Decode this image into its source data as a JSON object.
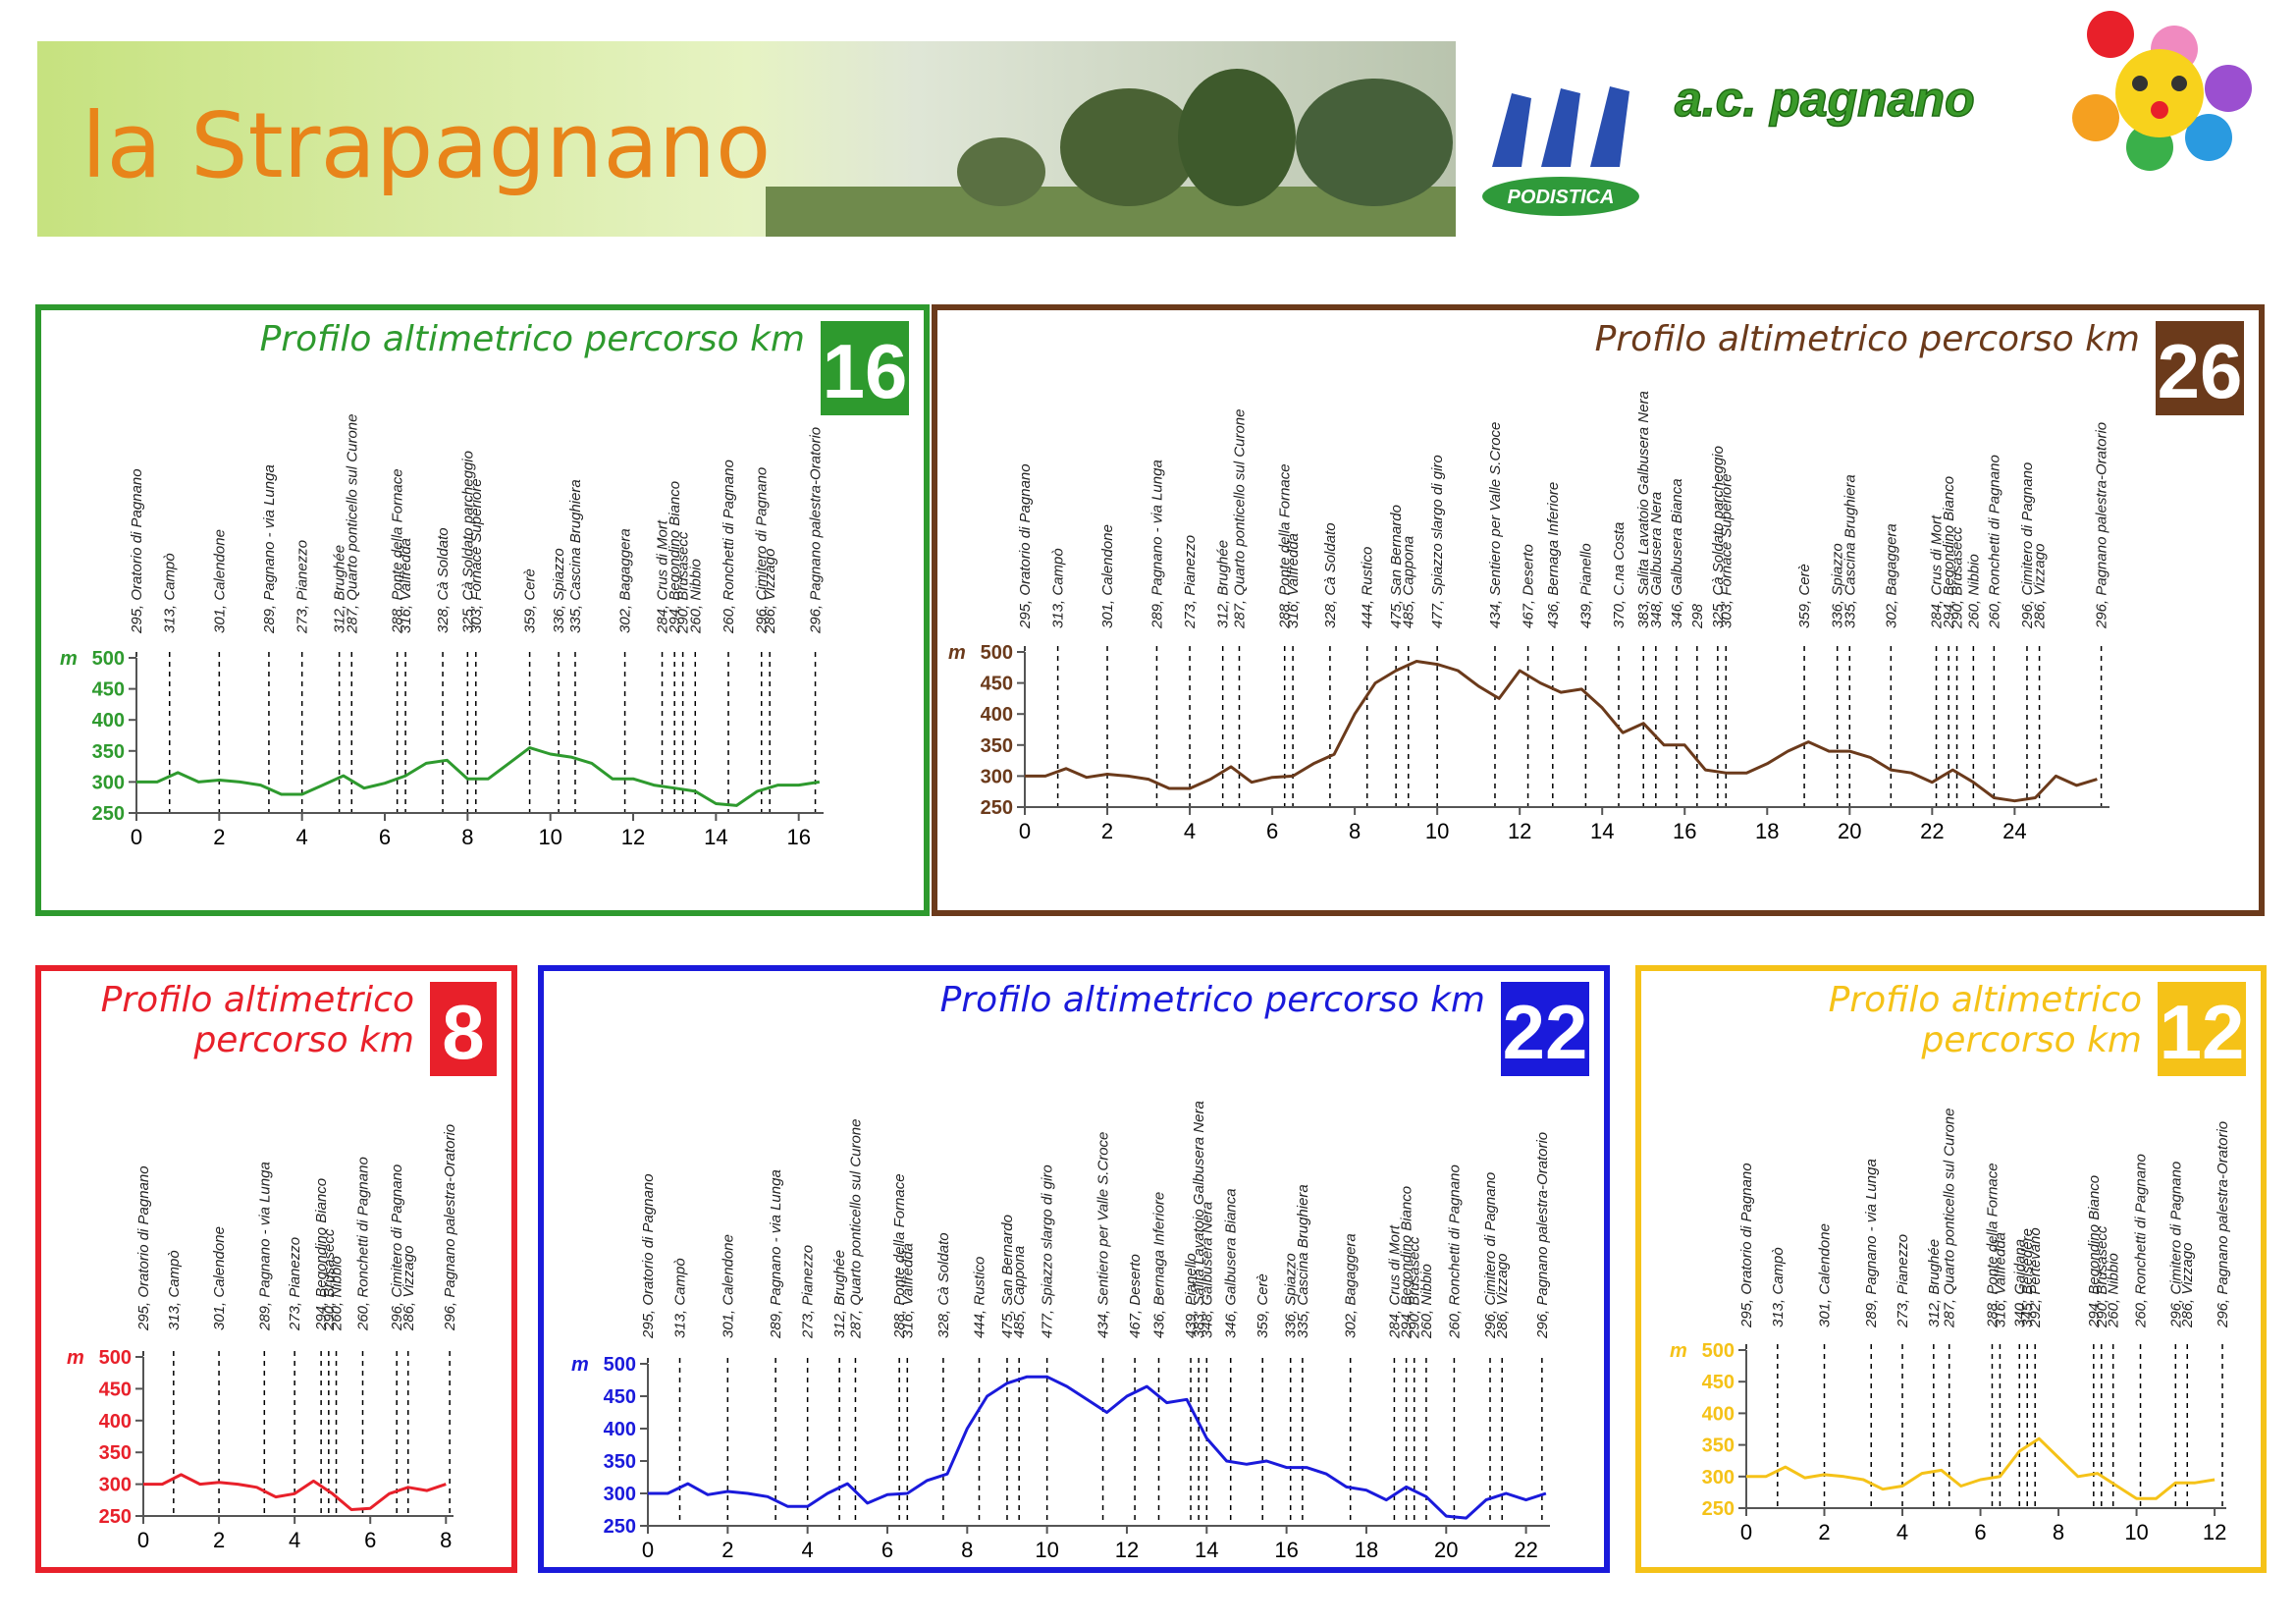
{
  "header": {
    "title": "la Strapagnano",
    "club": "a.c. pagnano",
    "logo_text": "PODISTICA"
  },
  "chart_data": [
    {
      "type": "line",
      "title": "Profilo altimetrico percorso km",
      "badge": "16",
      "y_label": "m",
      "color": "#2e9a2e",
      "xlim": [
        0,
        16.6
      ],
      "xticks": [
        0,
        2,
        4,
        6,
        8,
        10,
        12,
        14,
        16
      ],
      "ylim": [
        250,
        500
      ],
      "yticks": [
        250,
        300,
        350,
        400,
        450,
        500
      ],
      "x": [
        0,
        0.5,
        1,
        1.5,
        2,
        2.5,
        3,
        3.5,
        4,
        4.5,
        5,
        5.5,
        6,
        6.5,
        7,
        7.5,
        8,
        8.5,
        9,
        9.5,
        10,
        10.5,
        11,
        11.5,
        12,
        12.5,
        13,
        13.5,
        14,
        14.5,
        15,
        15.5,
        16,
        16.5
      ],
      "values": [
        300,
        300,
        315,
        300,
        303,
        300,
        295,
        280,
        280,
        295,
        310,
        290,
        298,
        310,
        330,
        335,
        305,
        305,
        330,
        355,
        345,
        340,
        330,
        305,
        305,
        295,
        290,
        285,
        265,
        262,
        285,
        295,
        295,
        300
      ],
      "waypoints": [
        {
          "label": "295, Oratorio di Pagnano",
          "km": 0
        },
        {
          "label": "313, Campò",
          "km": 0.8
        },
        {
          "label": "301, Calendone",
          "km": 2
        },
        {
          "label": "289, Pagnano - via Lunga",
          "km": 3.2
        },
        {
          "label": "273, Pianezzo",
          "km": 4
        },
        {
          "label": "312, Brughée",
          "km": 4.9
        },
        {
          "label": "287, Quarto ponticello sul Curone",
          "km": 5.2
        },
        {
          "label": "288, Ponte della Fornace",
          "km": 6.3
        },
        {
          "label": "316, Valfredda",
          "km": 6.5
        },
        {
          "label": "328, Cà Soldato",
          "km": 7.4
        },
        {
          "label": "325, Cà Soldato parcheggio",
          "km": 8.0
        },
        {
          "label": "303, Fornace Superiore",
          "km": 8.2
        },
        {
          "label": "359, Cerè",
          "km": 9.5
        },
        {
          "label": "336, Spiazzo",
          "km": 10.2
        },
        {
          "label": "335, Cascina Brughiera",
          "km": 10.6
        },
        {
          "label": "302, Bagaggera",
          "km": 11.8
        },
        {
          "label": "284, Crus di Mort",
          "km": 12.7
        },
        {
          "label": "294, Begondino Bianco",
          "km": 13.0
        },
        {
          "label": "290, Brusasecc",
          "km": 13.2
        },
        {
          "label": "260, Nibbio",
          "km": 13.5
        },
        {
          "label": "260, Ronchetti di Pagnano",
          "km": 14.3
        },
        {
          "label": "296, Cimitero di Pagnano",
          "km": 15.1
        },
        {
          "label": "286, Vizzago",
          "km": 15.3
        },
        {
          "label": "296, Pagnano palestra-Oratorio",
          "km": 16.4
        }
      ]
    },
    {
      "type": "line",
      "title": "Profilo altimetrico percorso km",
      "badge": "26",
      "y_label": "m",
      "color": "#6b3a1b",
      "xlim": [
        0,
        26.3
      ],
      "xticks": [
        0,
        2,
        4,
        6,
        8,
        10,
        12,
        14,
        16,
        18,
        20,
        22,
        24
      ],
      "ylim": [
        250,
        500
      ],
      "yticks": [
        250,
        300,
        350,
        400,
        450,
        500
      ],
      "x": [
        0,
        0.5,
        1,
        1.5,
        2,
        2.5,
        3,
        3.5,
        4,
        4.5,
        5,
        5.5,
        6,
        6.5,
        7,
        7.5,
        8,
        8.5,
        9,
        9.5,
        10,
        10.5,
        11,
        11.5,
        12,
        12.5,
        13,
        13.5,
        14,
        14.5,
        15,
        15.5,
        16,
        16.5,
        17,
        17.5,
        18,
        18.5,
        19,
        19.5,
        20,
        20.5,
        21,
        21.5,
        22,
        22.5,
        23,
        23.5,
        24,
        24.5,
        25,
        25.5,
        26
      ],
      "values": [
        300,
        300,
        312,
        298,
        303,
        300,
        295,
        280,
        280,
        295,
        315,
        290,
        298,
        300,
        320,
        335,
        400,
        450,
        470,
        485,
        480,
        470,
        445,
        425,
        470,
        450,
        435,
        440,
        410,
        370,
        385,
        350,
        350,
        310,
        305,
        305,
        320,
        340,
        355,
        340,
        340,
        330,
        310,
        305,
        290,
        310,
        290,
        265,
        260,
        265,
        300,
        285,
        295
      ],
      "waypoints": [
        {
          "label": "295, Oratorio di Pagnano",
          "km": 0
        },
        {
          "label": "313, Campò",
          "km": 0.8
        },
        {
          "label": "301, Calendone",
          "km": 2
        },
        {
          "label": "289, Pagnano - via Lunga",
          "km": 3.2
        },
        {
          "label": "273, Pianezzo",
          "km": 4
        },
        {
          "label": "312, Brughée",
          "km": 4.8
        },
        {
          "label": "287, Quarto ponticello sul Curone",
          "km": 5.2
        },
        {
          "label": "288, Ponte della Fornace",
          "km": 6.3
        },
        {
          "label": "316, Valfredda",
          "km": 6.5
        },
        {
          "label": "328, Cà Soldato",
          "km": 7.4
        },
        {
          "label": "444, Rustico",
          "km": 8.3
        },
        {
          "label": "475, San Bernardo",
          "km": 9.0
        },
        {
          "label": "485, Cappona",
          "km": 9.3
        },
        {
          "label": "477, Spiazzo slargo di giro",
          "km": 10.0
        },
        {
          "label": "434, Sentiero per Valle S.Croce",
          "km": 11.4
        },
        {
          "label": "467, Deserto",
          "km": 12.2
        },
        {
          "label": "436, Bernaga Inferiore",
          "km": 12.8
        },
        {
          "label": "439, Pianello",
          "km": 13.6
        },
        {
          "label": "370, C.na Costa",
          "km": 14.4
        },
        {
          "label": "383, Salita Lavatoio Galbusera Nera",
          "km": 15.0
        },
        {
          "label": "348, Galbusera Nera",
          "km": 15.3
        },
        {
          "label": "346, Galbusera Bianca",
          "km": 15.8
        },
        {
          "label": "298",
          "km": 16.3
        },
        {
          "label": "325, Cà Soldato parcheggio",
          "km": 16.8
        },
        {
          "label": "303, Fornace Superiore",
          "km": 17.0
        },
        {
          "label": "359, Cerè",
          "km": 18.9
        },
        {
          "label": "336, Spiazzo",
          "km": 19.7
        },
        {
          "label": "335, Cascina Brughiera",
          "km": 20.0
        },
        {
          "label": "302, Bagaggera",
          "km": 21.0
        },
        {
          "label": "284, Crus di Mort",
          "km": 22.1
        },
        {
          "label": "294, Begondino Bianco",
          "km": 22.4
        },
        {
          "label": "290, Brusasecc",
          "km": 22.6
        },
        {
          "label": "260, Nibbio",
          "km": 23.0
        },
        {
          "label": "260, Ronchetti di Pagnano",
          "km": 23.5
        },
        {
          "label": "296, Cimitero di Pagnano",
          "km": 24.3
        },
        {
          "label": "286, Vizzago",
          "km": 24.6
        },
        {
          "label": "296, Pagnano palestra-Oratorio",
          "km": 26.1
        }
      ]
    },
    {
      "type": "line",
      "title": "Profilo altimetrico percorso km",
      "badge": "8",
      "y_label": "m",
      "color": "#e8202a",
      "xlim": [
        0,
        8.2
      ],
      "xticks": [
        0,
        2,
        4,
        6,
        8
      ],
      "ylim": [
        250,
        500
      ],
      "yticks": [
        250,
        300,
        350,
        400,
        450,
        500
      ],
      "x": [
        0,
        0.5,
        1,
        1.5,
        2,
        2.5,
        3,
        3.5,
        4,
        4.5,
        5,
        5.5,
        6,
        6.5,
        7,
        7.5,
        8
      ],
      "values": [
        300,
        300,
        315,
        300,
        303,
        300,
        295,
        280,
        285,
        305,
        285,
        260,
        262,
        285,
        295,
        290,
        300
      ],
      "waypoints": [
        {
          "label": "295, Oratorio di Pagnano",
          "km": 0
        },
        {
          "label": "313, Campò",
          "km": 0.8
        },
        {
          "label": "301, Calendone",
          "km": 2
        },
        {
          "label": "289, Pagnano - via Lunga",
          "km": 3.2
        },
        {
          "label": "273, Pianezzo",
          "km": 4
        },
        {
          "label": "294, Begondino Bianco",
          "km": 4.7
        },
        {
          "label": "290, Brusasecc",
          "km": 4.9
        },
        {
          "label": "260, Nibbio",
          "km": 5.1
        },
        {
          "label": "260, Ronchetti di Pagnano",
          "km": 5.8
        },
        {
          "label": "296, Cimitero di Pagnano",
          "km": 6.7
        },
        {
          "label": "286, Vizzago",
          "km": 7.0
        },
        {
          "label": "296, Pagnano palestra-Oratorio",
          "km": 8.1
        }
      ]
    },
    {
      "type": "line",
      "title": "Profilo altimetrico percorso km",
      "badge": "22",
      "y_label": "m",
      "color": "#1a1adb",
      "xlim": [
        0,
        22.6
      ],
      "xticks": [
        0,
        2,
        4,
        6,
        8,
        10,
        12,
        14,
        16,
        18,
        20,
        22
      ],
      "ylim": [
        250,
        500
      ],
      "yticks": [
        250,
        300,
        350,
        400,
        450,
        500
      ],
      "x": [
        0,
        0.5,
        1,
        1.5,
        2,
        2.5,
        3,
        3.5,
        4,
        4.5,
        5,
        5.5,
        6,
        6.5,
        7,
        7.5,
        8,
        8.5,
        9,
        9.5,
        10,
        10.5,
        11,
        11.5,
        12,
        12.5,
        13,
        13.5,
        14,
        14.5,
        15,
        15.5,
        16,
        16.5,
        17,
        17.5,
        18,
        18.5,
        19,
        19.5,
        20,
        20.5,
        21,
        21.5,
        22,
        22.5
      ],
      "values": [
        300,
        300,
        315,
        298,
        303,
        300,
        295,
        280,
        280,
        300,
        315,
        285,
        298,
        300,
        320,
        330,
        400,
        450,
        470,
        480,
        480,
        465,
        445,
        425,
        450,
        465,
        440,
        445,
        385,
        350,
        345,
        350,
        340,
        340,
        330,
        310,
        305,
        290,
        310,
        295,
        265,
        262,
        290,
        300,
        290,
        300
      ],
      "waypoints": [
        {
          "label": "295, Oratorio di Pagnano",
          "km": 0
        },
        {
          "label": "313, Campò",
          "km": 0.8
        },
        {
          "label": "301, Calendone",
          "km": 2
        },
        {
          "label": "289, Pagnano - via Lunga",
          "km": 3.2
        },
        {
          "label": "273, Pianezzo",
          "km": 4
        },
        {
          "label": "312, Brughée",
          "km": 4.8
        },
        {
          "label": "287, Quarto ponticello sul Curone",
          "km": 5.2
        },
        {
          "label": "288, Ponte della Fornace",
          "km": 6.3
        },
        {
          "label": "316, Valfredda",
          "km": 6.5
        },
        {
          "label": "328, Cà Soldato",
          "km": 7.4
        },
        {
          "label": "444, Rustico",
          "km": 8.3
        },
        {
          "label": "475, San Bernardo",
          "km": 9.0
        },
        {
          "label": "485, Cappona",
          "km": 9.3
        },
        {
          "label": "477, Spiazzo slargo di giro",
          "km": 10.0
        },
        {
          "label": "434, Sentiero per Valle S.Croce",
          "km": 11.4
        },
        {
          "label": "467, Deserto",
          "km": 12.2
        },
        {
          "label": "436, Bernaga Inferiore",
          "km": 12.8
        },
        {
          "label": "439, Pianello",
          "km": 13.6
        },
        {
          "label": "383, Salita Lavatoio Galbusera Nera",
          "km": 13.8
        },
        {
          "label": "348, Galbusera Nera",
          "km": 14.0
        },
        {
          "label": "346, Galbusera Bianca",
          "km": 14.6
        },
        {
          "label": "359, Cerè",
          "km": 15.4
        },
        {
          "label": "336, Spiazzo",
          "km": 16.1
        },
        {
          "label": "335, Cascina Brughiera",
          "km": 16.4
        },
        {
          "label": "302, Bagaggera",
          "km": 17.6
        },
        {
          "label": "284, Crus di Mort",
          "km": 18.7
        },
        {
          "label": "294, Begondino Bianco",
          "km": 19.0
        },
        {
          "label": "290, Brusasecc",
          "km": 19.2
        },
        {
          "label": "260, Nibbio",
          "km": 19.5
        },
        {
          "label": "260, Ronchetti di Pagnano",
          "km": 20.2
        },
        {
          "label": "296, Cimitero di Pagnano",
          "km": 21.1
        },
        {
          "label": "286, Vizzago",
          "km": 21.4
        },
        {
          "label": "296, Pagnano palestra-Oratorio",
          "km": 22.4
        }
      ]
    },
    {
      "type": "line",
      "title": "Profilo altimetrico percorso km",
      "badge": "12",
      "y_label": "m",
      "color": "#f5c218",
      "xlim": [
        0,
        12.3
      ],
      "xticks": [
        0,
        2,
        4,
        6,
        8,
        10,
        12
      ],
      "ylim": [
        250,
        500
      ],
      "yticks": [
        250,
        300,
        350,
        400,
        450,
        500
      ],
      "x": [
        0,
        0.5,
        1,
        1.5,
        2,
        2.5,
        3,
        3.5,
        4,
        4.5,
        5,
        5.5,
        6,
        6.5,
        7,
        7.5,
        8,
        8.5,
        9,
        9.5,
        10,
        10.5,
        11,
        11.5,
        12
      ],
      "values": [
        300,
        300,
        315,
        298,
        303,
        300,
        295,
        280,
        285,
        305,
        310,
        285,
        295,
        300,
        340,
        360,
        330,
        300,
        305,
        285,
        265,
        265,
        290,
        290,
        295
      ],
      "waypoints": [
        {
          "label": "295, Oratorio di Pagnano",
          "km": 0
        },
        {
          "label": "313, Campò",
          "km": 0.8
        },
        {
          "label": "301, Calendone",
          "km": 2
        },
        {
          "label": "289, Pagnano - via Lunga",
          "km": 3.2
        },
        {
          "label": "273, Pianezzo",
          "km": 4
        },
        {
          "label": "312, Brughée",
          "km": 4.8
        },
        {
          "label": "287, Quarto ponticello sul Curone",
          "km": 5.2
        },
        {
          "label": "288, Ponte della Fornace",
          "km": 6.3
        },
        {
          "label": "316, Valfredda",
          "km": 6.5
        },
        {
          "label": "340, Gaidana",
          "km": 7.0
        },
        {
          "label": "345, Belsedere",
          "km": 7.2
        },
        {
          "label": "292, Pertevano",
          "km": 7.4
        },
        {
          "label": "294, Begondino Bianco",
          "km": 8.9
        },
        {
          "label": "290, Brusasecc",
          "km": 9.1
        },
        {
          "label": "260, Nibbio",
          "km": 9.4
        },
        {
          "label": "260, Ronchetti di Pagnano",
          "km": 10.1
        },
        {
          "label": "296, Cimitero di Pagnano",
          "km": 11.0
        },
        {
          "label": "286, Vizzago",
          "km": 11.3
        },
        {
          "label": "296, Pagnano palestra-Oratorio",
          "km": 12.2
        }
      ]
    }
  ]
}
